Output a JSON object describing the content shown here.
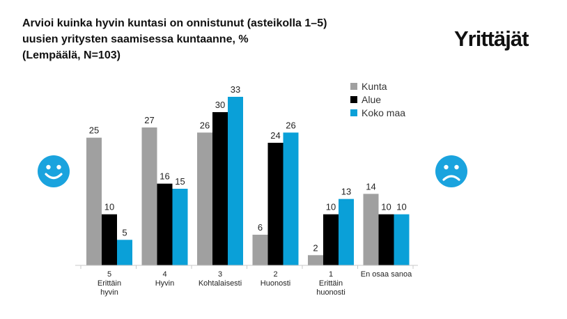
{
  "title_lines": [
    "Arvioi kuinka hyvin kuntasi on onnistunut (asteikolla 1–5)",
    "uusien yritysten saamisessa kuntaanne, %",
    "(Lempäälä, N=103)"
  ],
  "logo_text": "Yrittäjät",
  "colors": {
    "Kunta": "#a0a0a0",
    "Alue": "#000000",
    "Koko maa": "#0aa0d8",
    "face": "#1aa3de"
  },
  "icons": {
    "left": "smiley-happy-icon",
    "right": "smiley-sad-icon"
  },
  "chart_data": {
    "type": "bar",
    "title": "Arvioi kuinka hyvin kuntasi on onnistunut (asteikolla 1–5) uusien yritysten saamisessa kuntaanne, % (Lempäälä, N=103)",
    "categories": [
      [
        "5",
        "Erittäin",
        "hyvin"
      ],
      [
        "4",
        "Hyvin"
      ],
      [
        "3",
        "Kohtalaisesti"
      ],
      [
        "2",
        "Huonosti"
      ],
      [
        "1",
        "Erittäin",
        "huonosti"
      ],
      [
        "En osaa sanoa"
      ]
    ],
    "series": [
      {
        "name": "Kunta",
        "values": [
          25,
          27,
          26,
          6,
          2,
          14
        ]
      },
      {
        "name": "Alue",
        "values": [
          10,
          16,
          30,
          24,
          10,
          10
        ]
      },
      {
        "name": "Koko maa",
        "values": [
          5,
          15,
          33,
          26,
          13,
          10
        ]
      }
    ],
    "ylim": [
      0,
      33
    ],
    "legend_position": "top-right",
    "grid": false
  }
}
